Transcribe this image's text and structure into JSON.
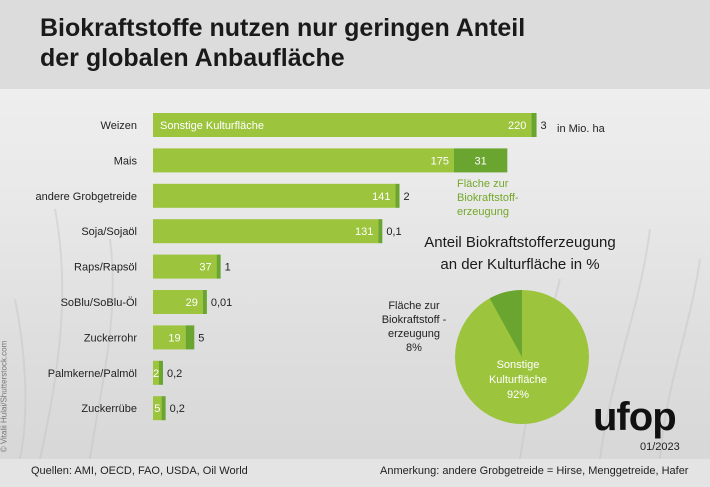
{
  "title_line1": "Biokraftstoffe nutzen nur geringen Anteil",
  "title_line2": "der globalen Anbaufläche",
  "colors": {
    "main": "#9cc43d",
    "bio": "#6aa52f",
    "accent_text": "#73a82a"
  },
  "chart_data": [
    {
      "type": "bar",
      "orientation": "horizontal",
      "stacked": true,
      "unit_label": "in Mio. ha",
      "categories": [
        "Weizen",
        "Mais",
        "andere Grobgetreide",
        "Soja/Sojaöl",
        "Raps/Rapsöl",
        "SoBlu/SoBlu-Öl",
        "Zuckerrohr",
        "Palmkerne/Palmöl",
        "Zuckerrübe"
      ],
      "series": [
        {
          "name": "Sonstige Kulturfläche",
          "values": [
            220,
            175,
            141,
            131,
            37,
            29,
            19,
            2,
            5
          ],
          "labels": [
            "220",
            "175",
            "141",
            "131",
            "37",
            "29",
            "19",
            "2",
            "5"
          ]
        },
        {
          "name": "Fläche zur Biokraftstofferzeugung",
          "values": [
            3,
            31,
            2,
            0.1,
            1,
            0.01,
            5,
            0.2,
            0.2
          ],
          "labels": [
            "3",
            "31",
            "2",
            "0,1",
            "1",
            "0,01",
            "5",
            "0,2",
            "0,2"
          ]
        }
      ],
      "inline_label_first_bar": "Sonstige Kulturfläche",
      "legend_bio": [
        "Fläche zur",
        "Biokraftstoff-",
        "erzeugung"
      ]
    },
    {
      "type": "pie",
      "title_lines": [
        "Anteil Biokraftstofferzeugung",
        "an der Kulturfläche in %"
      ],
      "slices": [
        {
          "name": "Sonstige Kulturfläche",
          "value": 92,
          "label_lines": [
            "Sonstige",
            "Kulturfläche",
            "92%"
          ]
        },
        {
          "name": "Fläche zur Biokraftstofferzeugung",
          "value": 8,
          "label_lines": [
            "Fläche zur",
            "Biokraftstoff -",
            "erzeugung",
            "8%"
          ]
        }
      ]
    }
  ],
  "footer": {
    "sources": "Quellen: AMI, OECD, FAO, USDA, Oil World",
    "note": "Anmerkung: andere Grobgetreide = Hirse, Menggetreide, Hafer"
  },
  "photo_credit": "© Vitalii Hulai/Shutterstock.com",
  "logo": "ufop",
  "date": "01/2023"
}
